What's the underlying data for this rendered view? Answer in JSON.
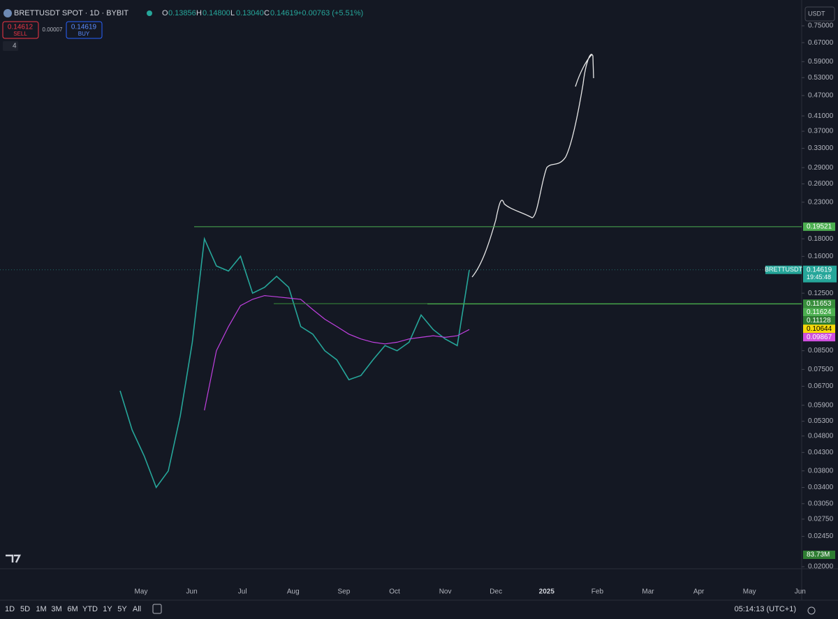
{
  "header": {
    "symbol": "BRETTUSDT SPOT · 1D · BYBIT",
    "o_label": "O",
    "open": "0.13856",
    "h_label": "H",
    "high": "0.14800",
    "l_label": "L",
    "low": "0.13040",
    "c_label": "C",
    "close": "0.14619",
    "change": "+0.00763 (+5.51%)",
    "sell_price": "0.14612",
    "sell": "SELL",
    "spread": "0.00007",
    "buy_price": "0.14619",
    "buy": "BUY",
    "indicators": "4",
    "currency": "USDT"
  },
  "chart_data": {
    "type": "line",
    "log_scale": true,
    "ylim": [
      0.02,
      0.75
    ],
    "yticks": [
      {
        "value": 0.75,
        "label": "0.75000"
      },
      {
        "value": 0.67,
        "label": "0.67000"
      },
      {
        "value": 0.59,
        "label": "0.59000"
      },
      {
        "value": 0.53,
        "label": "0.53000"
      },
      {
        "value": 0.47,
        "label": "0.47000"
      },
      {
        "value": 0.41,
        "label": "0.41000"
      },
      {
        "value": 0.37,
        "label": "0.37000"
      },
      {
        "value": 0.33,
        "label": "0.33000"
      },
      {
        "value": 0.29,
        "label": "0.29000"
      },
      {
        "value": 0.26,
        "label": "0.26000"
      },
      {
        "value": 0.23,
        "label": "0.23000"
      },
      {
        "value": 0.18,
        "label": "0.18000"
      },
      {
        "value": 0.16,
        "label": "0.16000"
      },
      {
        "value": 0.125,
        "label": "0.12500"
      },
      {
        "value": 0.085,
        "label": "0.08500"
      },
      {
        "value": 0.075,
        "label": "0.07500"
      },
      {
        "value": 0.067,
        "label": "0.06700"
      },
      {
        "value": 0.059,
        "label": "0.05900"
      },
      {
        "value": 0.053,
        "label": "0.05300"
      },
      {
        "value": 0.048,
        "label": "0.04800"
      },
      {
        "value": 0.043,
        "label": "0.04300"
      },
      {
        "value": 0.038,
        "label": "0.03800"
      },
      {
        "value": 0.034,
        "label": "0.03400"
      },
      {
        "value": 0.0305,
        "label": "0.03050"
      },
      {
        "value": 0.0275,
        "label": "0.02750"
      },
      {
        "value": 0.0245,
        "label": "0.02450"
      },
      {
        "value": 0.02,
        "label": "0.02000"
      }
    ],
    "time_labels": [
      "May",
      "Jun",
      "Jul",
      "Aug",
      "Sep",
      "Oct",
      "Nov",
      "Dec",
      "2025",
      "Feb",
      "Mar",
      "Apr",
      "May",
      "Jun"
    ],
    "series": [
      {
        "name": "BRETTUSDT",
        "color": "#26a69a",
        "values": [
          0.065,
          0.05,
          0.042,
          0.034,
          0.038,
          0.055,
          0.09,
          0.18,
          0.15,
          0.145,
          0.16,
          0.125,
          0.13,
          0.14,
          0.13,
          0.1,
          0.095,
          0.085,
          0.08,
          0.07,
          0.072,
          0.08,
          0.088,
          0.085,
          0.09,
          0.108,
          0.098,
          0.092,
          0.088,
          0.146
        ]
      },
      {
        "color": "#c040e0",
        "values": [
          null,
          null,
          null,
          null,
          null,
          null,
          null,
          0.057,
          0.085,
          0.1,
          0.115,
          0.12,
          0.123,
          0.122,
          0.121,
          0.12,
          0.112,
          0.105,
          0.1,
          0.095,
          0.092,
          0.09,
          0.089,
          0.09,
          0.092,
          0.093,
          0.094,
          0.093,
          0.094,
          0.098
        ]
      }
    ],
    "last_price": {
      "name": "BRETTUSDT",
      "value": 0.14619,
      "countdown": "19:45:48"
    },
    "price_tags": [
      {
        "value": 0.19521,
        "color": "#4caf50"
      },
      {
        "value": 0.11653,
        "color": "#388e3c"
      },
      {
        "value": 0.11624,
        "color": "#4caf50"
      },
      {
        "value": 0.11128,
        "color": "#2e7d32"
      },
      {
        "value": 0.10644,
        "color": "#f5d90a"
      },
      {
        "value": 0.09867,
        "color": "#d050e0"
      }
    ],
    "volume_label": "83.73M"
  },
  "footer": {
    "ranges": [
      "1D",
      "5D",
      "1M",
      "3M",
      "6M",
      "YTD",
      "1Y",
      "5Y",
      "All"
    ],
    "clock": "05:14:13 (UTC+1)"
  }
}
